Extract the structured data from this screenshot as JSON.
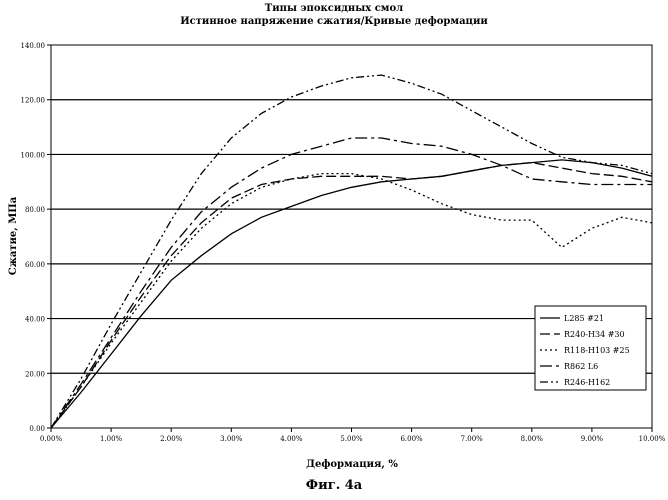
{
  "figure_caption": "Фиг. 4a",
  "chart_data": {
    "type": "line",
    "title": "Типы эпоксидных смол",
    "subtitle": "Истинное напряжение сжатия/Кривые деформации",
    "xlabel": "Деформация, %",
    "ylabel": "Сжатие, МПа",
    "xlim": [
      0,
      10
    ],
    "ylim": [
      0,
      140
    ],
    "x_ticks": [
      "0.00%",
      "1.00%",
      "2.00%",
      "3.00%",
      "4.00%",
      "5.00%",
      "6.00%",
      "7.00%",
      "8.00%",
      "9.00%",
      "10.00%"
    ],
    "y_ticks": [
      "0.00",
      "20.00",
      "40.00",
      "60.00",
      "80.00",
      "100.00",
      "120.00",
      "140.00"
    ],
    "grid": "horizontal",
    "legend_position": "bottom-right",
    "series": [
      {
        "name": "L285 #21",
        "dash": "none",
        "points": [
          [
            0,
            0
          ],
          [
            0.5,
            13
          ],
          [
            1,
            27
          ],
          [
            1.5,
            41
          ],
          [
            2,
            54
          ],
          [
            2.5,
            63
          ],
          [
            3,
            71
          ],
          [
            3.5,
            77
          ],
          [
            4,
            81
          ],
          [
            4.5,
            85
          ],
          [
            5,
            88
          ],
          [
            5.5,
            90
          ],
          [
            6,
            91
          ],
          [
            6.5,
            92
          ],
          [
            7,
            94
          ],
          [
            7.5,
            96
          ],
          [
            8,
            97
          ],
          [
            8.5,
            98
          ],
          [
            9,
            97
          ],
          [
            9.5,
            95
          ],
          [
            10,
            92
          ]
        ]
      },
      {
        "name": "R240-H34 #30",
        "dash": "10,4",
        "points": [
          [
            0,
            0
          ],
          [
            0.5,
            15
          ],
          [
            1,
            32
          ],
          [
            1.5,
            48
          ],
          [
            2,
            63
          ],
          [
            2.5,
            75
          ],
          [
            3,
            84
          ],
          [
            3.5,
            89
          ],
          [
            4,
            91
          ],
          [
            4.5,
            92
          ],
          [
            5,
            92
          ],
          [
            5.5,
            92
          ],
          [
            6,
            91
          ],
          [
            6.5,
            92
          ],
          [
            7,
            94
          ],
          [
            7.5,
            96
          ],
          [
            8,
            97
          ],
          [
            8.5,
            95
          ],
          [
            9,
            93
          ],
          [
            9.5,
            92
          ],
          [
            10,
            90
          ]
        ]
      },
      {
        "name": "R118-H103 #25",
        "dash": "2,3",
        "points": [
          [
            0,
            0
          ],
          [
            0.5,
            15
          ],
          [
            1,
            31
          ],
          [
            1.5,
            46
          ],
          [
            2,
            61
          ],
          [
            2.5,
            73
          ],
          [
            3,
            82
          ],
          [
            3.5,
            88
          ],
          [
            4,
            91
          ],
          [
            4.5,
            93
          ],
          [
            5,
            93
          ],
          [
            5.5,
            91
          ],
          [
            6,
            87
          ],
          [
            6.5,
            82
          ],
          [
            7,
            78
          ],
          [
            7.5,
            76
          ],
          [
            8,
            76
          ],
          [
            8.5,
            66
          ],
          [
            9,
            73
          ],
          [
            9.5,
            77
          ],
          [
            10,
            75
          ]
        ]
      },
      {
        "name": "R862 L6",
        "dash": "12,4,3,4",
        "points": [
          [
            0,
            0
          ],
          [
            0.5,
            16
          ],
          [
            1,
            33
          ],
          [
            1.5,
            50
          ],
          [
            2,
            66
          ],
          [
            2.5,
            79
          ],
          [
            3,
            88
          ],
          [
            3.5,
            95
          ],
          [
            4,
            100
          ],
          [
            4.5,
            103
          ],
          [
            5,
            106
          ],
          [
            5.5,
            106
          ],
          [
            6,
            104
          ],
          [
            6.5,
            103
          ],
          [
            7,
            100
          ],
          [
            7.5,
            96
          ],
          [
            8,
            91
          ],
          [
            8.5,
            90
          ],
          [
            9,
            89
          ],
          [
            9.5,
            89
          ],
          [
            10,
            89
          ]
        ]
      },
      {
        "name": "R246-H162",
        "dash": "8,3,2,3,2,3",
        "points": [
          [
            0,
            0
          ],
          [
            0.5,
            18
          ],
          [
            1,
            38
          ],
          [
            1.5,
            57
          ],
          [
            2,
            76
          ],
          [
            2.5,
            93
          ],
          [
            3,
            106
          ],
          [
            3.5,
            115
          ],
          [
            4,
            121
          ],
          [
            4.5,
            125
          ],
          [
            5,
            128
          ],
          [
            5.5,
            129
          ],
          [
            6,
            126
          ],
          [
            6.5,
            122
          ],
          [
            7,
            116
          ],
          [
            7.5,
            110
          ],
          [
            8,
            104
          ],
          [
            8.5,
            99
          ],
          [
            9,
            97
          ],
          [
            9.5,
            96
          ],
          [
            10,
            93
          ]
        ]
      }
    ]
  }
}
